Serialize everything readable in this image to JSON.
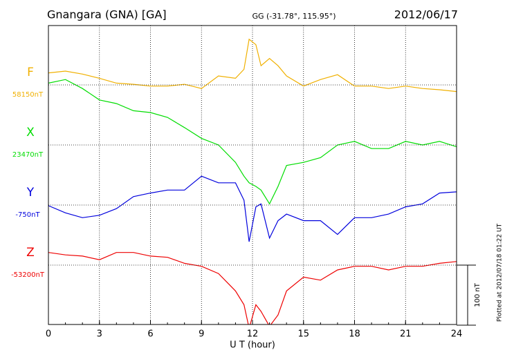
{
  "chart_data": {
    "type": "line",
    "title": "Gnangara (GNA)  [GA]",
    "subtitle": "GG (-31.78°, 115.95°)",
    "date": "2012/06/17",
    "xlabel": "U T (hour)",
    "footnote": "Plotted at 2012/07/18 01:22 UT",
    "scale_bar": {
      "value": 100,
      "label": "100 nT"
    },
    "grid": true,
    "xlim": [
      0,
      24
    ],
    "xticks": [
      0,
      3,
      6,
      9,
      12,
      15,
      18,
      21,
      24
    ],
    "x": [
      0,
      1,
      2,
      3,
      4,
      5,
      6,
      7,
      8,
      9,
      10,
      11,
      11.5,
      11.8,
      12.2,
      12.5,
      13,
      13.5,
      14,
      15,
      16,
      17,
      18,
      19,
      20,
      21,
      22,
      23,
      24
    ],
    "series": [
      {
        "name": "F",
        "color": "#f0b000",
        "baseline": {
          "value": 58150,
          "label": "58150nT"
        },
        "values": [
          58170,
          58173,
          58168,
          58161,
          58153,
          58151,
          58148,
          58148,
          58151,
          58144,
          58165,
          58161,
          58176,
          58226,
          58217,
          58182,
          58194,
          58182,
          58165,
          58148,
          58159,
          58167,
          58148,
          58148,
          58144,
          58148,
          58144,
          58142,
          58139
        ]
      },
      {
        "name": "X",
        "color": "#00dd00",
        "baseline": {
          "value": 23470,
          "label": "23470nT"
        },
        "values": [
          23573,
          23579,
          23564,
          23545,
          23539,
          23527,
          23524,
          23516,
          23499,
          23481,
          23470,
          23441,
          23418,
          23407,
          23401,
          23395,
          23372,
          23401,
          23436,
          23441,
          23449,
          23470,
          23476,
          23464,
          23464,
          23476,
          23470,
          23476,
          23467
        ]
      },
      {
        "name": "Y",
        "color": "#0000dd",
        "baseline": {
          "value": -750,
          "label": "-750nT"
        },
        "values": [
          -751,
          -763,
          -771,
          -767,
          -756,
          -736,
          -730,
          -725,
          -725,
          -702,
          -713,
          -713,
          -742,
          -811,
          -753,
          -748,
          -805,
          -776,
          -765,
          -776,
          -776,
          -799,
          -771,
          -771,
          -765,
          -753,
          -748,
          -730,
          -728
        ]
      },
      {
        "name": "Z",
        "color": "#ee0000",
        "baseline": {
          "value": -53200,
          "label": "-53200nT"
        },
        "values": [
          -53179,
          -53183,
          -53185,
          -53191,
          -53179,
          -53179,
          -53185,
          -53187,
          -53197,
          -53202,
          -53214,
          -53243,
          -53266,
          -53305,
          -53266,
          -53277,
          -53302,
          -53283,
          -53243,
          -53220,
          -53225,
          -53208,
          -53202,
          -53202,
          -53208,
          -53202,
          -53202,
          -53197,
          -53194
        ]
      }
    ]
  }
}
